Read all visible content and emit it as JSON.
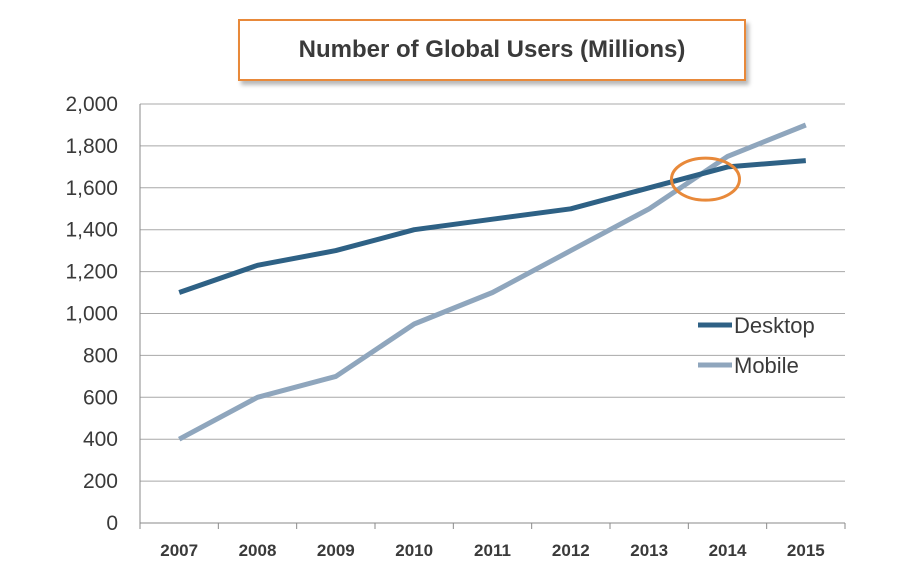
{
  "chart_data": {
    "type": "line",
    "title": "Number of Global Users (Millions)",
    "categories": [
      "2007",
      "2008",
      "2009",
      "2010",
      "2011",
      "2012",
      "2013",
      "2014",
      "2015"
    ],
    "series": [
      {
        "name": "Desktop",
        "values": [
          1100,
          1230,
          1300,
          1400,
          1450,
          1500,
          1600,
          1700,
          1730
        ],
        "color": "#2E6185"
      },
      {
        "name": "Mobile",
        "values": [
          400,
          600,
          700,
          950,
          1100,
          1300,
          1500,
          1750,
          1900
        ],
        "color": "#8FA6BD"
      }
    ],
    "ylim": [
      0,
      2000
    ],
    "yticks": [
      "0",
      "200",
      "400",
      "600",
      "800",
      "1,000",
      "1,200",
      "1,400",
      "1,600",
      "1,800",
      "2,000"
    ],
    "grid": true,
    "legend_position": "right",
    "annotation": {
      "type": "circle",
      "color": "#E8893A",
      "at_category": "2014",
      "at_value": 1665
    }
  }
}
